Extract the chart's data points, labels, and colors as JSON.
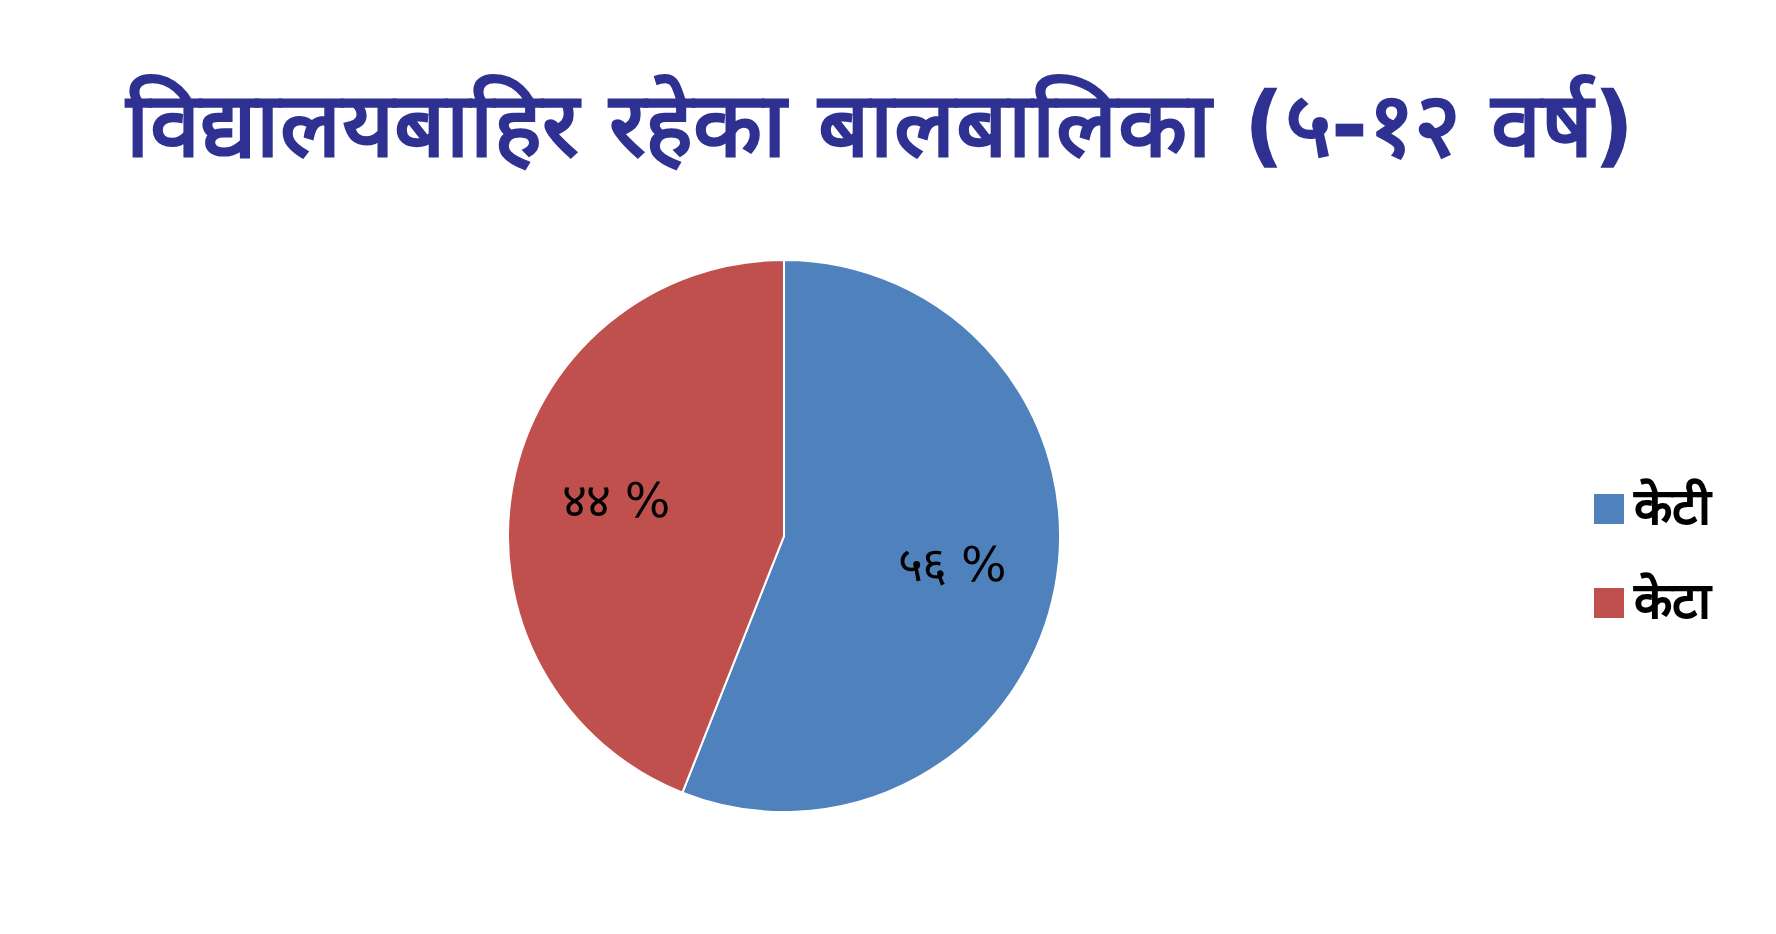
{
  "chart_data": {
    "type": "pie",
    "title": "विद्यालयबाहिर रहेका बालबालिका (५-१२ वर्ष)",
    "categories": [
      "केटी",
      "केटा"
    ],
    "values": [
      56,
      44
    ],
    "colors": [
      "#4f81bd",
      "#c0504d"
    ],
    "value_labels": [
      "५६ %",
      "४४ %"
    ],
    "legend": "right"
  }
}
